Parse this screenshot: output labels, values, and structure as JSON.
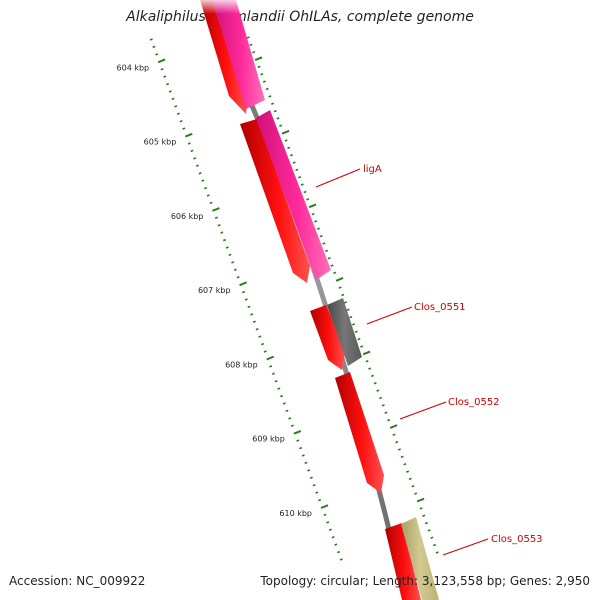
{
  "title": "Alkaliphilus oremlandii OhILAs, complete genome",
  "accession": "Accession: NC_009922",
  "summary": "Topology: circular; Length: 3,123,558 bp; Genes: 2,950",
  "scale": {
    "labels": [
      "604 kbp",
      "605 kbp",
      "606 kbp",
      "607 kbp",
      "608 kbp",
      "609 kbp",
      "610 kbp"
    ],
    "tick_color": "#2e7d1e"
  },
  "genes": [
    {
      "name": "ligA",
      "color": "#cc0000"
    },
    {
      "name": "Clos_0551",
      "color": "#cc0000"
    },
    {
      "name": "Clos_0552",
      "color": "#cc0000"
    },
    {
      "name": "Clos_0553",
      "color": "#cc0000"
    }
  ],
  "colors": {
    "backbone": "#7f7f7f",
    "cds": "#ff0000",
    "feature_pink": "#ff1493",
    "feature_gray": "#666666",
    "feature_khaki": "#c8c084"
  }
}
